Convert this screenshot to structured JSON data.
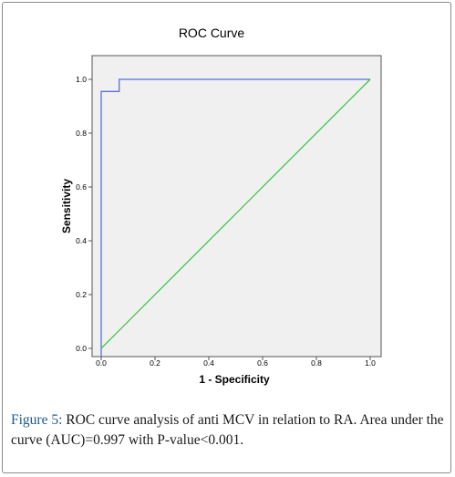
{
  "chart_data": {
    "type": "line",
    "title": "ROC Curve",
    "xlabel": "1 - Specificity",
    "ylabel": "Sensitivity",
    "xlim": [
      0.0,
      1.0
    ],
    "ylim": [
      0.0,
      1.0
    ],
    "x_ticks": [
      "0.0",
      "0.2",
      "0.4",
      "0.6",
      "0.8",
      "1.0"
    ],
    "y_ticks": [
      "0.0",
      "0.2",
      "0.4",
      "0.6",
      "0.8",
      "1.0"
    ],
    "grid": false,
    "plot_background": "#f0f0f0",
    "series": [
      {
        "color": "#5b6fd6",
        "x": [
          0.0,
          0.0,
          0.0,
          0.0667,
          0.0667,
          1.0
        ],
        "y": [
          0.0,
          0.0,
          0.955,
          0.955,
          1.0,
          1.0
        ]
      },
      {
        "color": "#3fc73f",
        "x": [
          0.0,
          1.0
        ],
        "y": [
          0.0,
          1.0
        ]
      }
    ]
  },
  "caption": {
    "label": "Figure 5:",
    "text": " ROC curve analysis of anti MCV in relation to RA. Area under the curve (AUC)=0.997 with P-value<0.001."
  }
}
